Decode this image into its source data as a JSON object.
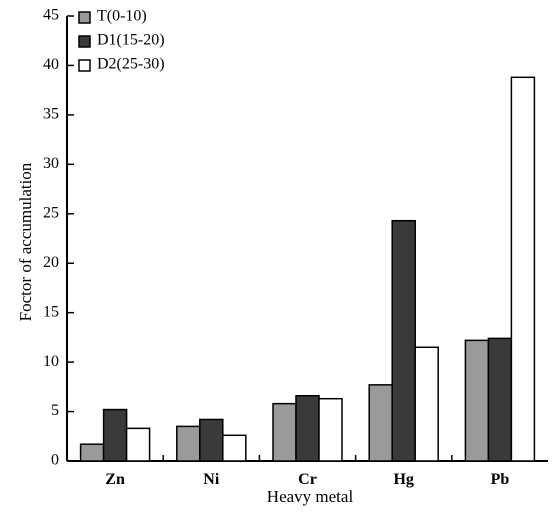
{
  "chart_data": {
    "type": "bar",
    "categories": [
      "Zn",
      "Ni",
      "Cr",
      "Hg",
      "Pb"
    ],
    "series": [
      {
        "name": "T(0-10)",
        "values": [
          1.7,
          3.5,
          5.8,
          7.7,
          12.2
        ],
        "color": "#9a9a9a"
      },
      {
        "name": "D1(15-20)",
        "values": [
          5.2,
          4.2,
          6.6,
          24.3,
          12.4
        ],
        "color": "#3a3a3a"
      },
      {
        "name": "D2(25-30)",
        "values": [
          3.3,
          2.6,
          6.3,
          11.5,
          38.8
        ],
        "color": "#ffffff"
      }
    ],
    "xlabel": "Heavy metal",
    "ylabel": "Foctor of accumulation",
    "ylim": [
      0,
      45
    ],
    "yticks": [
      0,
      5,
      10,
      15,
      20,
      25,
      30,
      35,
      40,
      45
    ],
    "grid": false,
    "legend_position": "top-left"
  }
}
